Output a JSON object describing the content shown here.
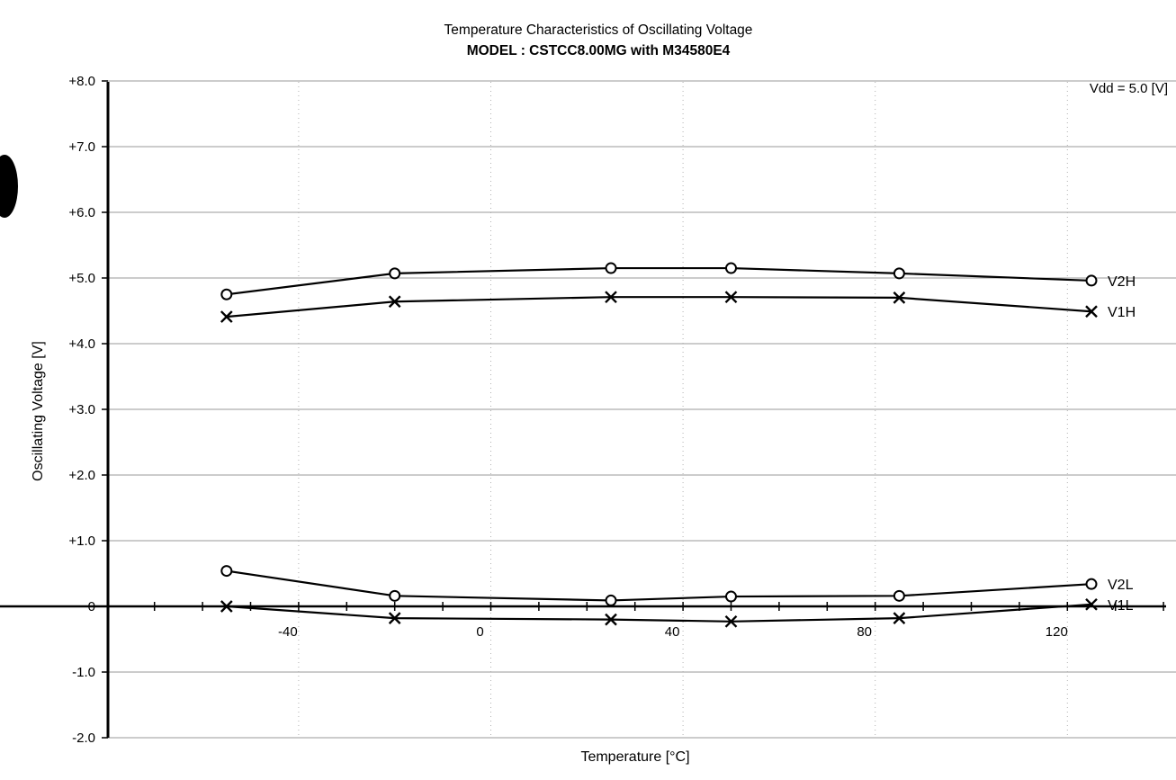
{
  "chart_data": {
    "type": "line",
    "title": "Temperature Characteristics of Oscillating Voltage",
    "subtitle": "MODEL : CSTCC8.00MG with M34580E4",
    "xlabel": "Temperature [°C]",
    "ylabel": "Oscillating Voltage [V]",
    "annotation": "Vdd = 5.0 [V]",
    "xlim": [
      -75,
      140
    ],
    "ylim": [
      -2.0,
      8.0
    ],
    "x_ticks": [
      -40,
      0,
      40,
      80,
      120
    ],
    "x_tick_labels": [
      "-40",
      "0",
      "40",
      "80",
      "120"
    ],
    "y_ticks": [
      8,
      7,
      6,
      5,
      4,
      3,
      2,
      1,
      0,
      -1,
      -2
    ],
    "y_tick_labels": [
      "+8.0",
      "+7.0",
      "+6.0",
      "+5.0",
      "+4.0",
      "+3.0",
      "+2.0",
      "+1.0",
      "0",
      "-1.0",
      "-2.0"
    ],
    "x": [
      -55,
      -20,
      25,
      50,
      85,
      125
    ],
    "series": [
      {
        "name": "V2H",
        "marker": "circle",
        "values": [
          4.75,
          5.07,
          5.15,
          5.15,
          5.07,
          4.96
        ]
      },
      {
        "name": "V1H",
        "marker": "cross",
        "values": [
          4.41,
          4.64,
          4.71,
          4.71,
          4.7,
          4.49
        ]
      },
      {
        "name": "V2L",
        "marker": "circle",
        "values": [
          0.54,
          0.16,
          0.09,
          0.15,
          0.16,
          0.34
        ]
      },
      {
        "name": "V1L",
        "marker": "cross",
        "values": [
          0.0,
          -0.18,
          -0.2,
          -0.23,
          -0.18,
          0.03
        ]
      }
    ],
    "grid": true,
    "legend": "labels at right end of each series"
  }
}
